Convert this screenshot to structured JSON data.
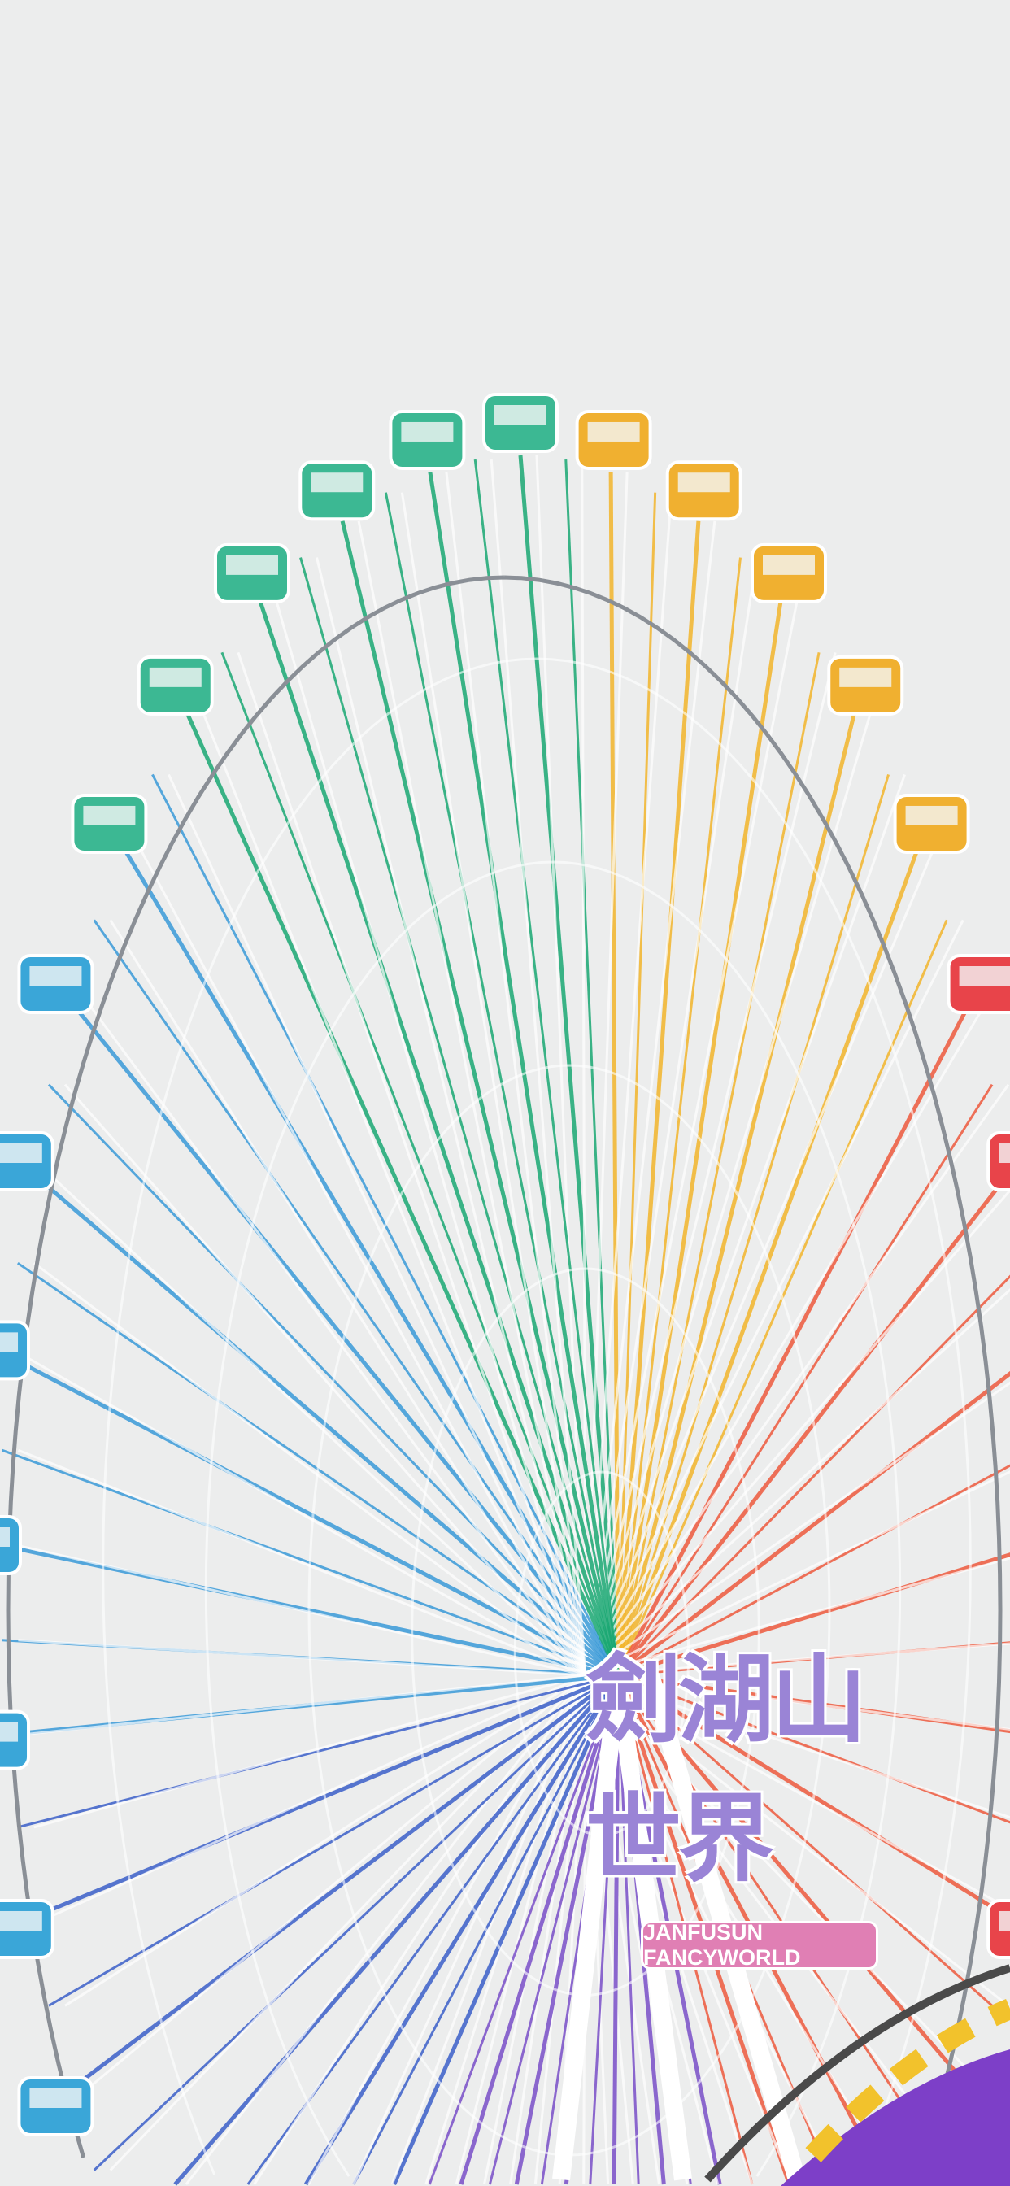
{
  "scene": {
    "subject": "ferris-wheel",
    "sky_color": "#eceded",
    "spoke_colors": [
      "#1aa873",
      "#f3b52c",
      "#ee5a3e",
      "#3a9ad8",
      "#3b5fc9",
      "#7a4fc8"
    ],
    "capsule_colors": {
      "green": "#3cb893",
      "yellow": "#f0b030",
      "red": "#e8444a",
      "blue": "#3aa6d8"
    }
  },
  "sign": {
    "chinese": "劍湖山世界",
    "english": "JANFUSUN FANCYWORLD"
  }
}
